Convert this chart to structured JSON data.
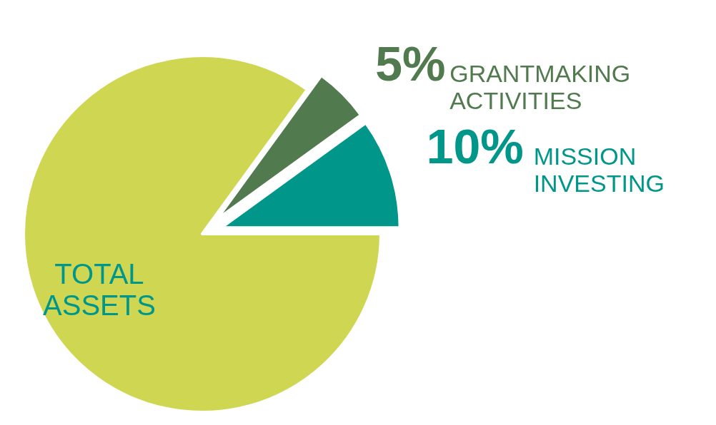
{
  "chart_data": {
    "type": "pie",
    "categories": [
      "TOTAL ASSETS",
      "GRANTMAKING ACTIVITIES",
      "MISSION INVESTING"
    ],
    "values": [
      85,
      5,
      10
    ],
    "value_labels": [
      null,
      "5%",
      "10%"
    ],
    "colors": [
      "#cfd752",
      "#527a4f",
      "#00968a"
    ]
  }
}
